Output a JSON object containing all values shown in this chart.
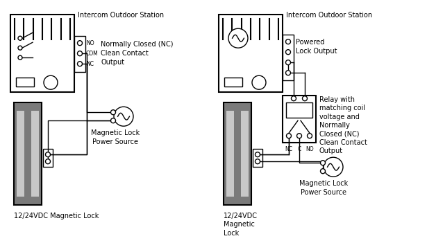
{
  "bg_color": "#ffffff",
  "line_color": "#000000",
  "dark_gray": "#7a7a7a",
  "light_gray": "#c8c8c8",
  "fig_width": 5.96,
  "fig_height": 3.17,
  "left_diagram": {
    "title": "Intercom Outdoor Station",
    "nc_output": "Normally Closed (NC)\nClean Contact\nOutput",
    "power_source": "Magnetic Lock\nPower Source",
    "mag_lock": "12/24VDC Magnetic Lock",
    "terminal_labels": [
      "NO",
      "COM",
      "NC"
    ]
  },
  "right_diagram": {
    "title": "Intercom Outdoor Station",
    "lock_output": "Powered\nLock Output",
    "relay_label": "Relay with\nmatching coil\nvoltage and\nNormally\nClosed (NC)\nClean Contact\nOutput",
    "power_source": "Magnetic Lock\nPower Source",
    "mag_lock": "12/24VDC\nMagnetic\nLock",
    "relay_labels": [
      "NC",
      "C",
      "NO"
    ]
  }
}
